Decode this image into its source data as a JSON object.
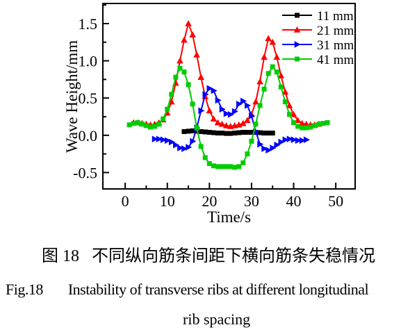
{
  "captions": {
    "chinese": {
      "fig_label": "图 18",
      "text": "不同纵向筋条间距下横向筋条失稳情况"
    },
    "english": {
      "fig_label": "Fig.18",
      "line1": "Instability of transverse ribs at different longitudinal",
      "line2": "rib spacing"
    }
  },
  "chart_data": {
    "type": "line",
    "title": "",
    "xlabel": "Time/s",
    "ylabel": "Wave Height/mm",
    "xlim": [
      -5.3,
      54.6
    ],
    "ylim": [
      -0.72,
      1.77
    ],
    "grid": false,
    "legend_position": "top-right-inside",
    "x_ticks": {
      "major": [
        0,
        10,
        20,
        30,
        40,
        50
      ],
      "minor": [
        5,
        15,
        25,
        35,
        45
      ],
      "labels": [
        "0",
        "10",
        "20",
        "30",
        "40",
        "50"
      ]
    },
    "y_ticks": {
      "major": [
        -0.5,
        0,
        0.5,
        1,
        1.5
      ],
      "minor": [
        -0.25,
        0.25,
        0.75,
        1.25,
        1.75
      ],
      "labels": [
        "-0.5",
        "0.0",
        "0.5",
        "1.0",
        "1.5"
      ]
    },
    "series": [
      {
        "name": "11 mm",
        "color": "#000000",
        "marker": "square",
        "points": [
          [
            14,
            0.05
          ],
          [
            15,
            0.055
          ],
          [
            16,
            0.06
          ],
          [
            17,
            0.055
          ],
          [
            18,
            0.05
          ],
          [
            19,
            0.045
          ],
          [
            20,
            0.04
          ],
          [
            21,
            0.035
          ],
          [
            22,
            0.03
          ],
          [
            23,
            0.03
          ],
          [
            24,
            0.025
          ],
          [
            25,
            0.025
          ],
          [
            26,
            0.03
          ],
          [
            27,
            0.035
          ],
          [
            28,
            0.04
          ],
          [
            29,
            0.04
          ],
          [
            30,
            0.04
          ],
          [
            31,
            0.04
          ],
          [
            32,
            0.035
          ],
          [
            33,
            0.03
          ],
          [
            34,
            0.03
          ],
          [
            35,
            0.03
          ]
        ]
      },
      {
        "name": "21 mm",
        "color": "#ff0000",
        "marker": "triangle-up",
        "points": [
          [
            2,
            0.17
          ],
          [
            3,
            0.17
          ],
          [
            4,
            0.16
          ],
          [
            5,
            0.15
          ],
          [
            6,
            0.14
          ],
          [
            7,
            0.15
          ],
          [
            8,
            0.17
          ],
          [
            9,
            0.21
          ],
          [
            10,
            0.3
          ],
          [
            11,
            0.45
          ],
          [
            12,
            0.7
          ],
          [
            13,
            1.0
          ],
          [
            14,
            1.28
          ],
          [
            15,
            1.5
          ],
          [
            16,
            1.35
          ],
          [
            17,
            1.08
          ],
          [
            18,
            0.78
          ],
          [
            19,
            0.52
          ],
          [
            20,
            0.33
          ],
          [
            21,
            0.22
          ],
          [
            22,
            0.17
          ],
          [
            23,
            0.15
          ],
          [
            24,
            0.13
          ],
          [
            25,
            0.12
          ],
          [
            26,
            0.13
          ],
          [
            27,
            0.14
          ],
          [
            28,
            0.16
          ],
          [
            29,
            0.2
          ],
          [
            30,
            0.28
          ],
          [
            31,
            0.45
          ],
          [
            32,
            0.72
          ],
          [
            33,
            1.05
          ],
          [
            34,
            1.3
          ],
          [
            35,
            1.25
          ],
          [
            36,
            1.05
          ],
          [
            37,
            0.8
          ],
          [
            38,
            0.58
          ],
          [
            39,
            0.4
          ],
          [
            40,
            0.28
          ],
          [
            41,
            0.2
          ],
          [
            42,
            0.16
          ],
          [
            43,
            0.15
          ],
          [
            44,
            0.14
          ],
          [
            45,
            0.14
          ],
          [
            46,
            0.15
          ]
        ]
      },
      {
        "name": "31 mm",
        "color": "#0000ff",
        "marker": "triangle-right",
        "points": [
          [
            7,
            -0.05
          ],
          [
            8,
            -0.05
          ],
          [
            9,
            -0.06
          ],
          [
            10,
            -0.07
          ],
          [
            11,
            -0.09
          ],
          [
            12,
            -0.13
          ],
          [
            13,
            -0.17
          ],
          [
            14,
            -0.18
          ],
          [
            15,
            -0.16
          ],
          [
            16,
            -0.08
          ],
          [
            17,
            0.1
          ],
          [
            18,
            0.33
          ],
          [
            19,
            0.55
          ],
          [
            20,
            0.63
          ],
          [
            21,
            0.6
          ],
          [
            22,
            0.47
          ],
          [
            23,
            0.35
          ],
          [
            24,
            0.29
          ],
          [
            25,
            0.28
          ],
          [
            26,
            0.32
          ],
          [
            27,
            0.42
          ],
          [
            28,
            0.46
          ],
          [
            29,
            0.4
          ],
          [
            30,
            0.26
          ],
          [
            31,
            0.05
          ],
          [
            32,
            -0.12
          ],
          [
            33,
            -0.18
          ],
          [
            34,
            -0.2
          ],
          [
            35,
            -0.17
          ],
          [
            36,
            -0.13
          ],
          [
            37,
            -0.09
          ],
          [
            38,
            -0.06
          ],
          [
            39,
            -0.05
          ],
          [
            40,
            -0.06
          ],
          [
            41,
            -0.07
          ],
          [
            42,
            -0.07
          ],
          [
            43,
            -0.06
          ]
        ]
      },
      {
        "name": "41 mm",
        "color": "#00cc00",
        "marker": "square",
        "points": [
          [
            1,
            0.14
          ],
          [
            2,
            0.16
          ],
          [
            3,
            0.17
          ],
          [
            4,
            0.15
          ],
          [
            5,
            0.13
          ],
          [
            6,
            0.11
          ],
          [
            7,
            0.12
          ],
          [
            8,
            0.15
          ],
          [
            9,
            0.22
          ],
          [
            10,
            0.35
          ],
          [
            11,
            0.55
          ],
          [
            12,
            0.78
          ],
          [
            13,
            0.9
          ],
          [
            14,
            0.85
          ],
          [
            15,
            0.68
          ],
          [
            16,
            0.42
          ],
          [
            17,
            0.1
          ],
          [
            18,
            -0.15
          ],
          [
            19,
            -0.3
          ],
          [
            20,
            -0.38
          ],
          [
            21,
            -0.41
          ],
          [
            22,
            -0.42
          ],
          [
            23,
            -0.42
          ],
          [
            24,
            -0.42
          ],
          [
            25,
            -0.42
          ],
          [
            26,
            -0.43
          ],
          [
            27,
            -0.42
          ],
          [
            28,
            -0.37
          ],
          [
            29,
            -0.25
          ],
          [
            30,
            -0.08
          ],
          [
            31,
            0.15
          ],
          [
            32,
            0.4
          ],
          [
            33,
            0.62
          ],
          [
            34,
            0.83
          ],
          [
            35,
            0.92
          ],
          [
            36,
            0.85
          ],
          [
            37,
            0.65
          ],
          [
            38,
            0.45
          ],
          [
            39,
            0.28
          ],
          [
            40,
            0.17
          ],
          [
            41,
            0.12
          ],
          [
            42,
            0.1
          ],
          [
            43,
            0.1
          ],
          [
            44,
            0.11
          ],
          [
            45,
            0.13
          ],
          [
            46,
            0.15
          ],
          [
            47,
            0.16
          ],
          [
            48,
            0.17
          ]
        ]
      }
    ]
  }
}
